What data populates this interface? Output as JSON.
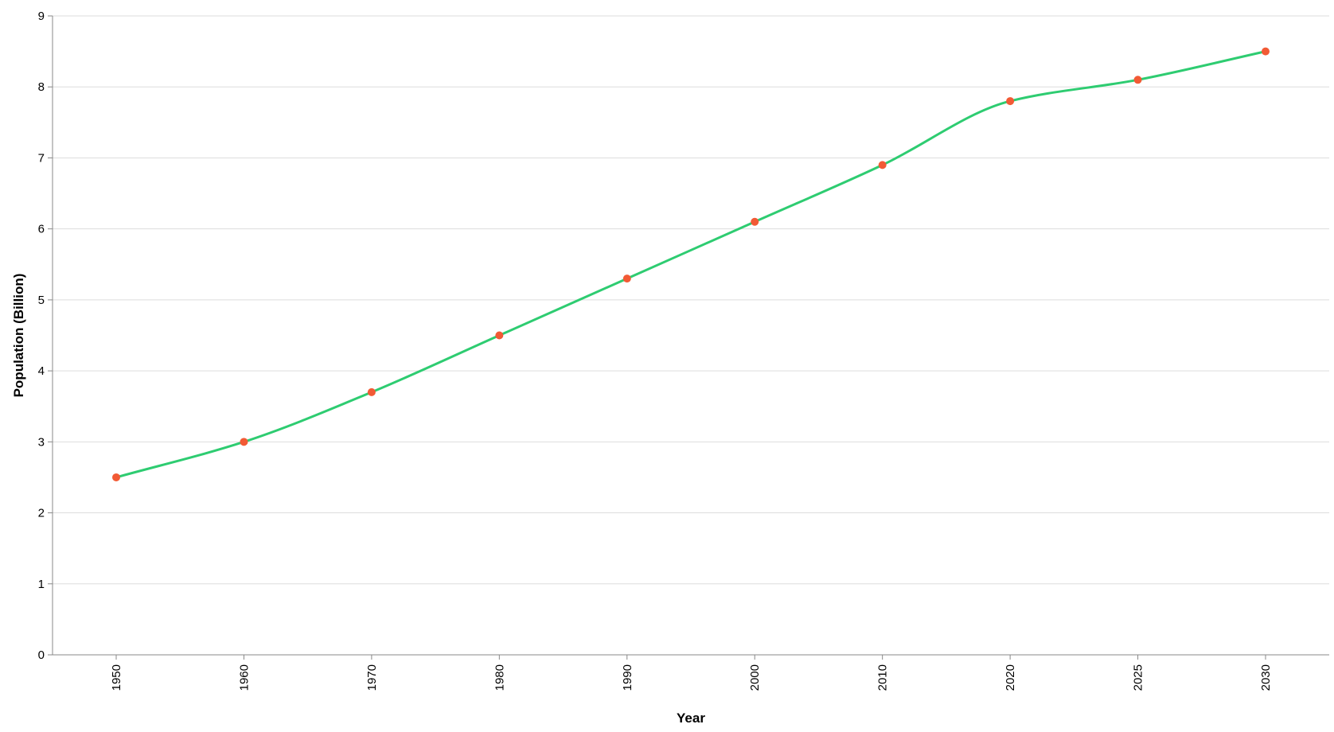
{
  "chart_data": {
    "type": "line",
    "title": "",
    "xlabel": "Year",
    "ylabel": "Population (Billion)",
    "categories": [
      "1950",
      "1960",
      "1970",
      "1980",
      "1990",
      "2000",
      "2010",
      "2020",
      "2025",
      "2030"
    ],
    "series": [
      {
        "values": [
          2.5,
          3.0,
          3.7,
          4.5,
          5.3,
          6.1,
          6.9,
          7.8,
          8.1,
          8.5
        ]
      }
    ],
    "ylim": [
      0,
      9
    ],
    "yticks": [
      "0",
      "1",
      "2",
      "3",
      "4",
      "5",
      "6",
      "7",
      "8",
      "9"
    ],
    "grid": true,
    "line_color": "#2ecc71",
    "point_color": "#f25a35",
    "interpolation": "smooth"
  }
}
